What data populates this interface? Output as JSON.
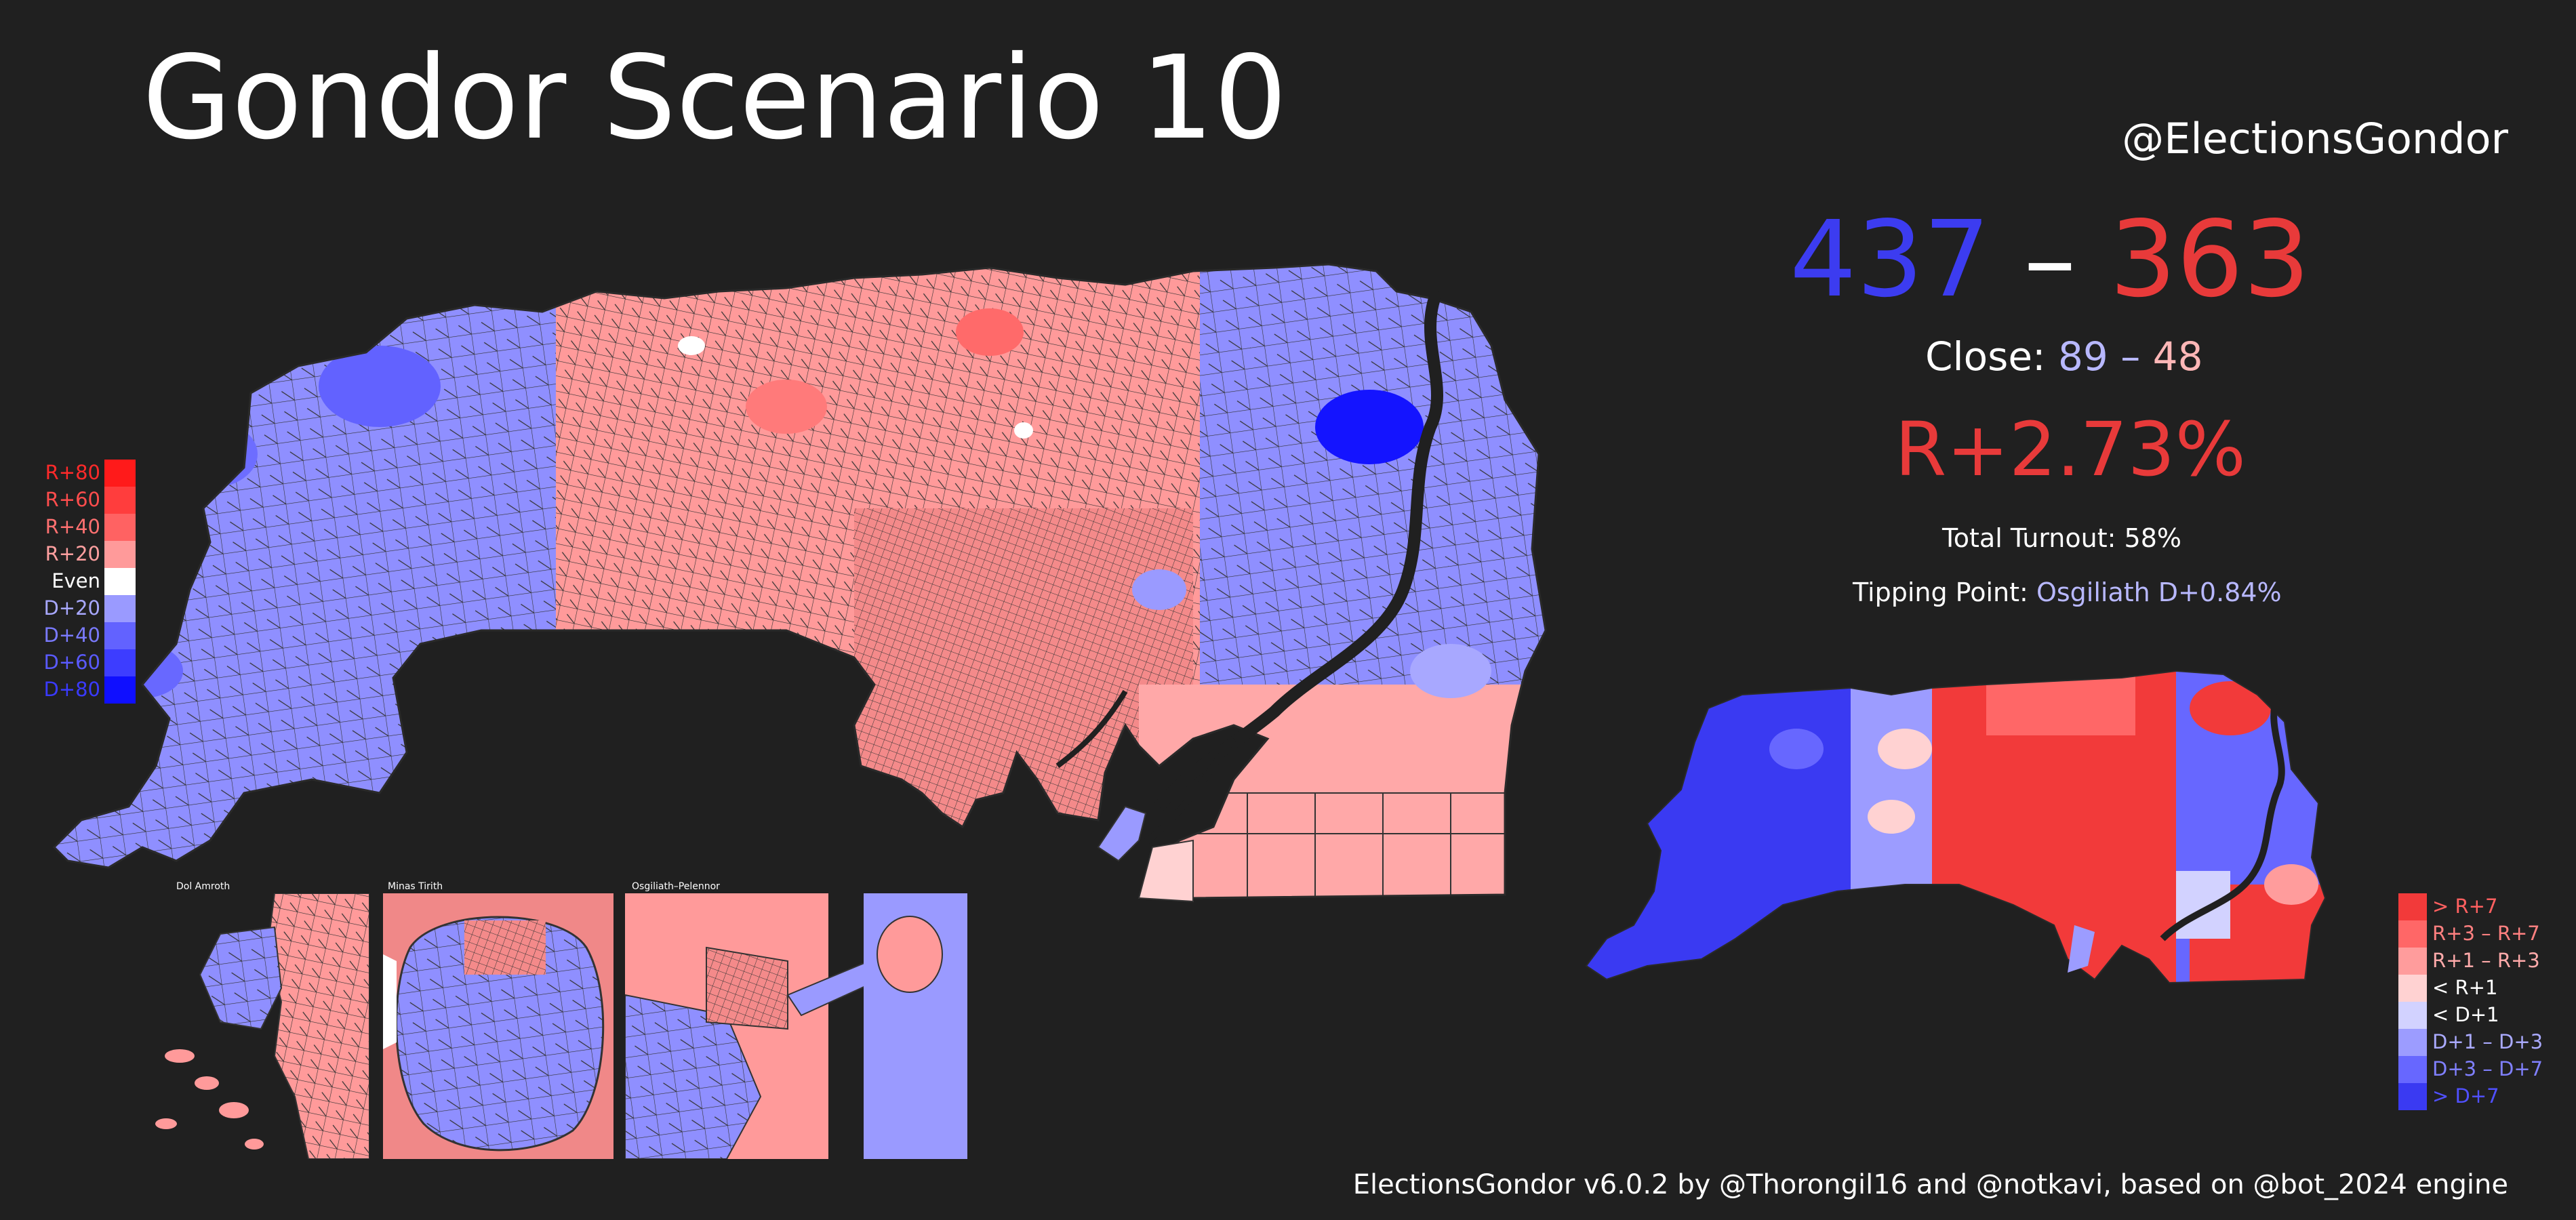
{
  "title": "Gondor Scenario 10",
  "handle": "@ElectionsGondor",
  "result": {
    "dem_seats": "437",
    "separator": "–",
    "rep_seats": "363",
    "close_label": "Close:",
    "close_dem": "89",
    "close_sep": "–",
    "close_rep": "48",
    "margin": "R+2.73%",
    "turnout_label": "Total Turnout:",
    "turnout_value": "58%",
    "tipping_label": "Tipping Point:",
    "tipping_value": "Osgiliath D+0.84%"
  },
  "credit": "ElectionsGondor v6.0.2 by @Thorongil16 and @notkavi, based on @bot_2024 engine",
  "legend_margin": [
    {
      "label": "R+80",
      "color": "#ff1a1a",
      "text_color": "#ff2a2a"
    },
    {
      "label": "R+60",
      "color": "#ff3d3d",
      "text_color": "#ff4d4d"
    },
    {
      "label": "R+40",
      "color": "#ff6262",
      "text_color": "#ff7070"
    },
    {
      "label": "R+20",
      "color": "#ff9a9a",
      "text_color": "#ffa0a0"
    },
    {
      "label": "Even",
      "color": "#ffffff",
      "text_color": "#ffffff"
    },
    {
      "label": "D+20",
      "color": "#9a9aff",
      "text_color": "#a8a8ff"
    },
    {
      "label": "D+40",
      "color": "#6262ff",
      "text_color": "#7a7aff"
    },
    {
      "label": "D+60",
      "color": "#3d3dff",
      "text_color": "#5a5aff"
    },
    {
      "label": "D+80",
      "color": "#0f0fff",
      "text_color": "#3a3aff"
    }
  ],
  "legend_seats": [
    {
      "label": "> R+7",
      "color": "#f23a3a",
      "text_color": "#ff6060"
    },
    {
      "label": "R+3 – R+7",
      "color": "#ff6767",
      "text_color": "#ff8080"
    },
    {
      "label": "R+1 – R+3",
      "color": "#ff9c9c",
      "text_color": "#ffaaaa"
    },
    {
      "label": "< R+1",
      "color": "#ffd2d2",
      "text_color": "#ffffff"
    },
    {
      "label": "< D+1",
      "color": "#d2d2ff",
      "text_color": "#ffffff"
    },
    {
      "label": "D+1 – D+3",
      "color": "#9c9cff",
      "text_color": "#aaaaff"
    },
    {
      "label": "D+3 – D+7",
      "color": "#6767ff",
      "text_color": "#8080ff"
    },
    {
      "label": "> D+7",
      "color": "#3a3af2",
      "text_color": "#5050ff"
    }
  ],
  "insets": {
    "dol_amroth": "Dol Amroth",
    "minas_tirith": "Minas Tirith",
    "osgiliath": "Osgiliath–Pelennor"
  },
  "colors": {
    "background": "#202020",
    "river": "#202020",
    "dem": "#3c3cf0",
    "rep": "#e83a3a"
  }
}
